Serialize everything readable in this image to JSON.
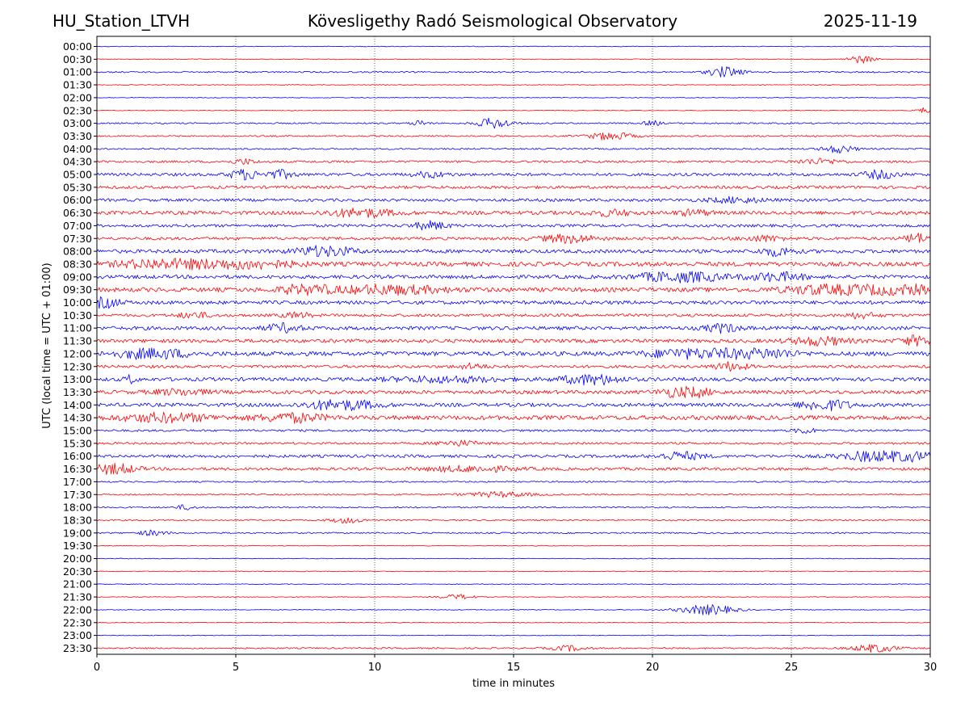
{
  "header": {
    "station": "HU_Station_LTVH",
    "observatory": "Kövesligethy Radó Seismological Observatory",
    "date": "2025-11-19"
  },
  "chart_data": {
    "type": "line",
    "title": "Kövesligethy Radó Seismological Observatory",
    "xlabel": "time in minutes",
    "ylabel": "UTC (local time = UTC + 01:00)",
    "xlim": [
      0,
      30
    ],
    "xticks": [
      "0",
      "5",
      "10",
      "15",
      "20",
      "25",
      "30"
    ],
    "xtick_values": [
      0,
      5,
      10,
      15,
      20,
      25,
      30
    ],
    "grid": "vertical dotted",
    "trace_colors": [
      "#0000ff",
      "#ff0000"
    ],
    "row_labels": [
      "00:00",
      "00:30",
      "01:00",
      "01:30",
      "02:00",
      "02:30",
      "03:00",
      "03:30",
      "04:00",
      "04:30",
      "05:00",
      "05:30",
      "06:00",
      "06:30",
      "07:00",
      "07:30",
      "08:00",
      "08:30",
      "09:00",
      "09:30",
      "10:00",
      "10:30",
      "11:00",
      "11:30",
      "12:00",
      "12:30",
      "13:00",
      "13:30",
      "14:00",
      "14:30",
      "15:00",
      "15:30",
      "16:00",
      "16:30",
      "17:00",
      "17:30",
      "18:00",
      "18:30",
      "19:00",
      "19:30",
      "20:00",
      "20:30",
      "21:00",
      "21:30",
      "22:00",
      "22:30",
      "23:00",
      "23:30"
    ],
    "noise_level": [
      1,
      1,
      2,
      1,
      1,
      1,
      2,
      2,
      2,
      3,
      4,
      4,
      4,
      5,
      4,
      4,
      5,
      6,
      5,
      6,
      5,
      4,
      5,
      5,
      6,
      4,
      5,
      5,
      5,
      6,
      3,
      3,
      4,
      4,
      2,
      2,
      2,
      2,
      2,
      1,
      1,
      1,
      1,
      1,
      1,
      1,
      1,
      2
    ],
    "events": [
      [],
      [
        {
          "t": 27.5,
          "a": 3,
          "w": 0.5
        }
      ],
      [
        {
          "t": 22.6,
          "a": 4,
          "w": 0.6
        }
      ],
      [],
      [],
      [
        {
          "t": 29.8,
          "a": 2,
          "w": 0.3
        }
      ],
      [
        {
          "t": 14.3,
          "a": 4,
          "w": 0.6
        },
        {
          "t": 11.6,
          "a": 2,
          "w": 0.3
        },
        {
          "t": 20.0,
          "a": 2,
          "w": 0.3
        }
      ],
      [
        {
          "t": 18.5,
          "a": 3,
          "w": 0.8
        }
      ],
      [
        {
          "t": 26.7,
          "a": 3,
          "w": 0.6
        }
      ],
      [
        {
          "t": 5.3,
          "a": 2,
          "w": 0.4
        },
        {
          "t": 26.0,
          "a": 2,
          "w": 0.8
        }
      ],
      [
        {
          "t": 5.3,
          "a": 4,
          "w": 0.5
        },
        {
          "t": 6.6,
          "a": 3,
          "w": 0.5
        },
        {
          "t": 28.2,
          "a": 3,
          "w": 0.6
        },
        {
          "t": 12.0,
          "a": 2,
          "w": 0.6
        }
      ],
      [],
      [
        {
          "t": 23.0,
          "a": 2,
          "w": 1.0
        }
      ],
      [
        {
          "t": 9.5,
          "a": 3,
          "w": 1.2
        },
        {
          "t": 18.5,
          "a": 2,
          "w": 0.8
        },
        {
          "t": 21.5,
          "a": 2,
          "w": 0.6
        }
      ],
      [
        {
          "t": 12.0,
          "a": 3,
          "w": 0.6
        }
      ],
      [
        {
          "t": 17.0,
          "a": 3,
          "w": 1.0
        },
        {
          "t": 29.5,
          "a": 4,
          "w": 0.4
        },
        {
          "t": 24.0,
          "a": 2,
          "w": 0.8
        }
      ],
      [
        {
          "t": 8.2,
          "a": 4,
          "w": 1.0
        },
        {
          "t": 24.5,
          "a": 3,
          "w": 0.6
        }
      ],
      [
        {
          "t": 2.5,
          "a": 4,
          "w": 1.6
        },
        {
          "t": 5.5,
          "a": 3,
          "w": 1.6
        }
      ],
      [
        {
          "t": 21.0,
          "a": 4,
          "w": 1.5
        },
        {
          "t": 24.5,
          "a": 3,
          "w": 1.0
        }
      ],
      [
        {
          "t": 7.5,
          "a": 4,
          "w": 0.8
        },
        {
          "t": 10.5,
          "a": 3,
          "w": 2.0
        },
        {
          "t": 26.5,
          "a": 4,
          "w": 1.6
        },
        {
          "t": 29.0,
          "a": 4,
          "w": 1.0
        }
      ],
      [
        {
          "t": 0.3,
          "a": 4,
          "w": 0.5
        }
      ],
      [
        {
          "t": 3.5,
          "a": 2,
          "w": 0.6
        },
        {
          "t": 7.2,
          "a": 2,
          "w": 0.5
        },
        {
          "t": 27.5,
          "a": 2,
          "w": 0.6
        }
      ],
      [
        {
          "t": 6.7,
          "a": 3,
          "w": 0.6
        },
        {
          "t": 22.5,
          "a": 3,
          "w": 0.6
        }
      ],
      [
        {
          "t": 26.0,
          "a": 3,
          "w": 1.0
        },
        {
          "t": 29.5,
          "a": 4,
          "w": 0.5
        }
      ],
      [
        {
          "t": 2.0,
          "a": 4,
          "w": 1.2
        },
        {
          "t": 21.5,
          "a": 4,
          "w": 1.5
        },
        {
          "t": 24.0,
          "a": 4,
          "w": 1.0
        }
      ],
      [
        {
          "t": 22.8,
          "a": 3,
          "w": 0.6
        },
        {
          "t": 13.5,
          "a": 2,
          "w": 0.5
        }
      ],
      [
        {
          "t": 17.8,
          "a": 4,
          "w": 1.0
        },
        {
          "t": 1.2,
          "a": 3,
          "w": 0.2
        },
        {
          "t": 12.5,
          "a": 2,
          "w": 2.0
        }
      ],
      [
        {
          "t": 21.2,
          "a": 5,
          "w": 0.8
        },
        {
          "t": 3.0,
          "a": 2,
          "w": 1.0
        }
      ],
      [
        {
          "t": 8.8,
          "a": 4,
          "w": 1.2
        },
        {
          "t": 26.2,
          "a": 5,
          "w": 0.8
        }
      ],
      [
        {
          "t": 2.5,
          "a": 3,
          "w": 1.6
        },
        {
          "t": 7.0,
          "a": 3,
          "w": 1.2
        }
      ],
      [
        {
          "t": 25.5,
          "a": 2,
          "w": 0.4
        }
      ],
      [
        {
          "t": 13.0,
          "a": 2,
          "w": 0.8
        }
      ],
      [
        {
          "t": 21.0,
          "a": 3,
          "w": 0.8
        },
        {
          "t": 28.5,
          "a": 5,
          "w": 1.5
        }
      ],
      [
        {
          "t": 0.6,
          "a": 4,
          "w": 0.8
        },
        {
          "t": 13.5,
          "a": 2,
          "w": 1.6
        }
      ],
      [],
      [
        {
          "t": 14.5,
          "a": 2,
          "w": 1.2
        }
      ],
      [
        {
          "t": 3.2,
          "a": 2,
          "w": 0.3
        }
      ],
      [
        {
          "t": 9.0,
          "a": 2,
          "w": 0.6
        }
      ],
      [
        {
          "t": 2.0,
          "a": 2,
          "w": 0.5
        }
      ],
      [],
      [],
      [],
      [],
      [
        {
          "t": 13.0,
          "a": 2,
          "w": 0.6
        }
      ],
      [
        {
          "t": 22.0,
          "a": 4,
          "w": 1.0
        }
      ],
      [],
      [],
      [
        {
          "t": 28.0,
          "a": 3,
          "w": 0.8
        },
        {
          "t": 17.0,
          "a": 2,
          "w": 0.6
        }
      ]
    ]
  }
}
